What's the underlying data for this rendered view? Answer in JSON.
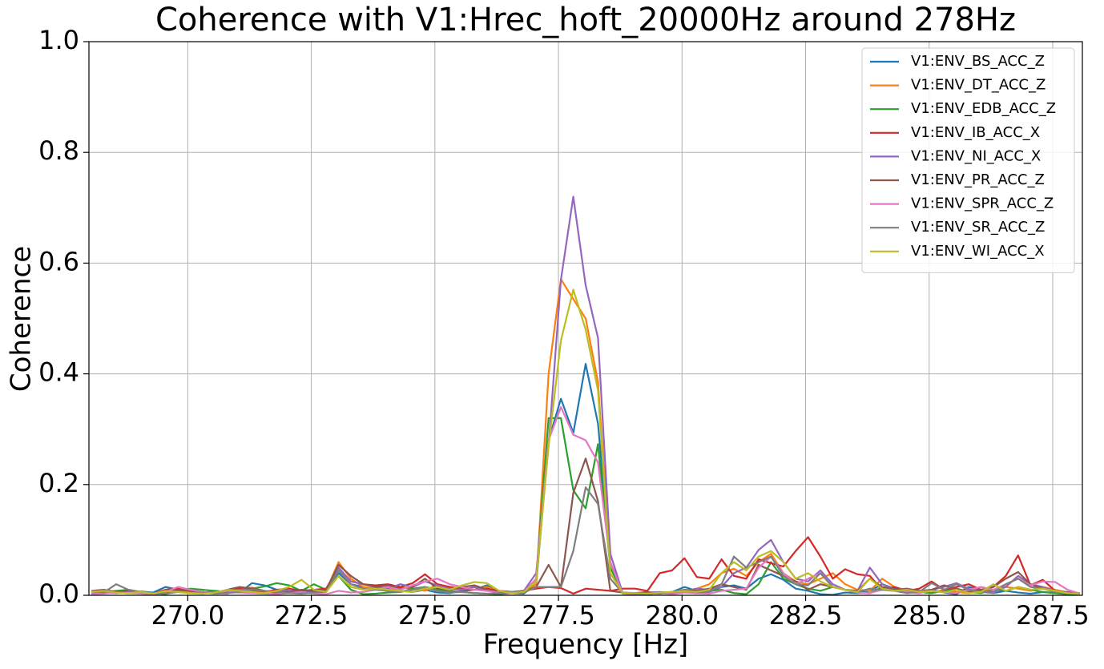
{
  "chart_data": {
    "type": "line",
    "title": "Coherence with V1:Hrec_hoft_20000Hz around 278Hz",
    "xlabel": "Frequency [Hz]",
    "ylabel": "Coherence",
    "xlim": [
      268,
      288.1
    ],
    "ylim": [
      0,
      1
    ],
    "xticks": [
      {
        "value": 270,
        "label": "270.0"
      },
      272.5,
      {
        "value": 275,
        "label": "275.0"
      },
      277.5,
      {
        "value": 280,
        "label": "280.0"
      },
      282.5,
      {
        "value": 285,
        "label": "285.0"
      },
      287.5
    ],
    "yticks": [
      {
        "value": 0,
        "label": "0.0"
      },
      0.2,
      0.4,
      0.6,
      0.8,
      {
        "value": 1,
        "label": "1.0"
      }
    ],
    "grid": true,
    "legend": "upper right",
    "x": [
      268.05,
      268.3,
      268.55,
      268.8,
      269.05,
      269.3,
      269.55,
      269.8,
      270.05,
      270.3,
      270.55,
      270.8,
      271.05,
      271.3,
      271.55,
      271.8,
      272.05,
      272.3,
      272.55,
      272.8,
      273.05,
      273.3,
      273.55,
      273.8,
      274.05,
      274.3,
      274.55,
      274.8,
      275.05,
      275.3,
      275.55,
      275.8,
      276.05,
      276.3,
      276.55,
      276.8,
      277.05,
      277.3,
      277.55,
      277.8,
      278.05,
      278.3,
      278.55,
      278.8,
      279.05,
      279.3,
      279.55,
      279.8,
      280.05,
      280.3,
      280.55,
      280.8,
      281.05,
      281.3,
      281.55,
      281.8,
      282.05,
      282.3,
      282.55,
      282.8,
      283.05,
      283.3,
      283.55,
      283.8,
      284.05,
      284.3,
      284.55,
      284.8,
      285.05,
      285.3,
      285.55,
      285.8,
      286.05,
      286.3,
      286.55,
      286.8,
      287.05,
      287.3,
      287.55,
      287.8,
      288.05
    ],
    "series": [
      {
        "name": "V1:ENV_BS_ACC_Z",
        "color": "#1f77b4",
        "values": [
          0.005,
          0.008,
          0.006,
          0.004,
          0.007,
          0.005,
          0.015,
          0.01,
          0.006,
          0.004,
          0.008,
          0.006,
          0.005,
          0.022,
          0.018,
          0.01,
          0.006,
          0.004,
          0.008,
          0.012,
          0.04,
          0.02,
          0.015,
          0.01,
          0.012,
          0.008,
          0.006,
          0.01,
          0.005,
          0.004,
          0.008,
          0.01,
          0.018,
          0.006,
          0.004,
          0.003,
          0.02,
          0.28,
          0.355,
          0.293,
          0.418,
          0.31,
          0.06,
          0.004,
          0.003,
          0.005,
          0.004,
          0.006,
          0.015,
          0.008,
          0.006,
          0.015,
          0.018,
          0.012,
          0.03,
          0.038,
          0.028,
          0.012,
          0.008,
          0.002,
          0.001,
          0.005,
          0.004,
          0.008,
          0.02,
          0.012,
          0.006,
          0.004,
          0.01,
          0.005,
          0.002,
          0.015,
          0.01,
          0.004,
          0.008,
          0.005,
          0.003,
          0.006,
          0.004,
          0.002,
          0.001
        ]
      },
      {
        "name": "V1:ENV_DT_ACC_Z",
        "color": "#ff7f0e",
        "values": [
          0.004,
          0.006,
          0.008,
          0.005,
          0.003,
          0.002,
          0.004,
          0.01,
          0.006,
          0.005,
          0.004,
          0.003,
          0.012,
          0.014,
          0.008,
          0.006,
          0.01,
          0.005,
          0.004,
          0.008,
          0.06,
          0.03,
          0.015,
          0.012,
          0.01,
          0.015,
          0.012,
          0.008,
          0.02,
          0.015,
          0.012,
          0.01,
          0.015,
          0.008,
          0.006,
          0.005,
          0.02,
          0.4,
          0.571,
          0.535,
          0.5,
          0.385,
          0.05,
          0.004,
          0.003,
          0.004,
          0.005,
          0.006,
          0.008,
          0.012,
          0.02,
          0.04,
          0.048,
          0.035,
          0.06,
          0.075,
          0.04,
          0.025,
          0.02,
          0.03,
          0.04,
          0.02,
          0.01,
          0.008,
          0.03,
          0.015,
          0.008,
          0.006,
          0.004,
          0.01,
          0.006,
          0.004,
          0.008,
          0.01,
          0.015,
          0.012,
          0.008,
          0.015,
          0.01,
          0.005,
          0.003
        ]
      },
      {
        "name": "V1:ENV_EDB_ACC_Z",
        "color": "#2ca02c",
        "values": [
          0.006,
          0.004,
          0.008,
          0.01,
          0.006,
          0.004,
          0.002,
          0.008,
          0.012,
          0.01,
          0.008,
          0.006,
          0.01,
          0.012,
          0.016,
          0.022,
          0.018,
          0.008,
          0.02,
          0.01,
          0.035,
          0.01,
          0.002,
          0.003,
          0.005,
          0.006,
          0.012,
          0.015,
          0.01,
          0.008,
          0.006,
          0.004,
          0.003,
          0.002,
          0.004,
          0.006,
          0.03,
          0.32,
          0.32,
          0.19,
          0.157,
          0.273,
          0.05,
          0.003,
          0.002,
          0.004,
          0.003,
          0.005,
          0.006,
          0.004,
          0.008,
          0.01,
          0.004,
          0.002,
          0.02,
          0.06,
          0.03,
          0.02,
          0.012,
          0.008,
          0.015,
          0.01,
          0.005,
          0.004,
          0.015,
          0.01,
          0.008,
          0.006,
          0.004,
          0.008,
          0.012,
          0.006,
          0.004,
          0.01,
          0.008,
          0.015,
          0.01,
          0.006,
          0.004,
          0.002,
          0.001
        ]
      },
      {
        "name": "V1:ENV_IB_ACC_X",
        "color": "#d62728",
        "values": [
          0.002,
          0.004,
          0.006,
          0.008,
          0.005,
          0.003,
          0.01,
          0.012,
          0.008,
          0.006,
          0.004,
          0.01,
          0.012,
          0.008,
          0.006,
          0.01,
          0.012,
          0.008,
          0.01,
          0.012,
          0.05,
          0.025,
          0.02,
          0.018,
          0.02,
          0.015,
          0.022,
          0.038,
          0.02,
          0.015,
          0.012,
          0.01,
          0.012,
          0.008,
          0.006,
          0.008,
          0.012,
          0.015,
          0.013,
          0.003,
          0.012,
          0.01,
          0.008,
          0.012,
          0.012,
          0.008,
          0.04,
          0.045,
          0.067,
          0.033,
          0.03,
          0.065,
          0.035,
          0.03,
          0.065,
          0.058,
          0.052,
          0.08,
          0.105,
          0.07,
          0.03,
          0.047,
          0.038,
          0.035,
          0.01,
          0.015,
          0.008,
          0.012,
          0.025,
          0.01,
          0.015,
          0.02,
          0.01,
          0.015,
          0.035,
          0.072,
          0.018,
          0.028,
          0.008,
          0.005,
          0.003
        ]
      },
      {
        "name": "V1:ENV_NI_ACC_X",
        "color": "#9467bd",
        "values": [
          0.003,
          0.005,
          0.004,
          0.006,
          0.003,
          0.002,
          0.004,
          0.008,
          0.01,
          0.006,
          0.004,
          0.008,
          0.01,
          0.012,
          0.008,
          0.006,
          0.01,
          0.004,
          0.006,
          0.008,
          0.05,
          0.025,
          0.02,
          0.015,
          0.012,
          0.02,
          0.015,
          0.025,
          0.018,
          0.012,
          0.01,
          0.015,
          0.01,
          0.006,
          0.004,
          0.008,
          0.04,
          0.27,
          0.57,
          0.72,
          0.56,
          0.465,
          0.075,
          0.004,
          0.003,
          0.005,
          0.006,
          0.004,
          0.008,
          0.012,
          0.01,
          0.015,
          0.04,
          0.05,
          0.082,
          0.1,
          0.06,
          0.03,
          0.025,
          0.045,
          0.02,
          0.01,
          0.008,
          0.05,
          0.02,
          0.01,
          0.008,
          0.006,
          0.01,
          0.015,
          0.022,
          0.012,
          0.008,
          0.006,
          0.015,
          0.035,
          0.02,
          0.015,
          0.008,
          0.006,
          0.004
        ]
      },
      {
        "name": "V1:ENV_PR_ACC_Z",
        "color": "#8c564b",
        "values": [
          0.008,
          0.01,
          0.006,
          0.004,
          0.005,
          0.003,
          0.006,
          0.01,
          0.008,
          0.006,
          0.004,
          0.01,
          0.015,
          0.012,
          0.008,
          0.004,
          0.006,
          0.01,
          0.008,
          0.01,
          0.055,
          0.035,
          0.02,
          0.015,
          0.018,
          0.012,
          0.015,
          0.03,
          0.012,
          0.01,
          0.015,
          0.018,
          0.01,
          0.006,
          0.004,
          0.008,
          0.015,
          0.055,
          0.015,
          0.185,
          0.247,
          0.17,
          0.008,
          0.005,
          0.004,
          0.006,
          0.003,
          0.005,
          0.01,
          0.008,
          0.012,
          0.02,
          0.015,
          0.01,
          0.055,
          0.045,
          0.035,
          0.025,
          0.01,
          0.02,
          0.015,
          0.01,
          0.008,
          0.03,
          0.015,
          0.01,
          0.012,
          0.008,
          0.01,
          0.018,
          0.012,
          0.006,
          0.01,
          0.015,
          0.03,
          0.042,
          0.02,
          0.012,
          0.008,
          0.005,
          0.003
        ]
      },
      {
        "name": "V1:ENV_SPR_ACC_Z",
        "color": "#e377c2",
        "values": [
          0.002,
          0.003,
          0.005,
          0.004,
          0.003,
          0.002,
          0.006,
          0.015,
          0.01,
          0.006,
          0.004,
          0.008,
          0.005,
          0.004,
          0.003,
          0.002,
          0.004,
          0.006,
          0.003,
          0.002,
          0.008,
          0.005,
          0.006,
          0.01,
          0.015,
          0.01,
          0.018,
          0.025,
          0.03,
          0.02,
          0.015,
          0.01,
          0.008,
          0.005,
          0.004,
          0.006,
          0.03,
          0.28,
          0.34,
          0.29,
          0.28,
          0.24,
          0.06,
          0.003,
          0.002,
          0.003,
          0.004,
          0.002,
          0.005,
          0.004,
          0.003,
          0.008,
          0.01,
          0.012,
          0.05,
          0.07,
          0.04,
          0.02,
          0.03,
          0.04,
          0.015,
          0.01,
          0.005,
          0.004,
          0.01,
          0.008,
          0.006,
          0.004,
          0.008,
          0.006,
          0.004,
          0.01,
          0.015,
          0.01,
          0.02,
          0.03,
          0.018,
          0.025,
          0.024,
          0.01,
          0.003
        ]
      },
      {
        "name": "V1:ENV_SR_ACC_Z",
        "color": "#7f7f7f",
        "values": [
          0.008,
          0.005,
          0.02,
          0.01,
          0.006,
          0.004,
          0.003,
          0.006,
          0.004,
          0.005,
          0.003,
          0.004,
          0.006,
          0.01,
          0.008,
          0.006,
          0.004,
          0.003,
          0.005,
          0.006,
          0.045,
          0.02,
          0.012,
          0.01,
          0.008,
          0.006,
          0.01,
          0.015,
          0.008,
          0.005,
          0.006,
          0.004,
          0.003,
          0.004,
          0.006,
          0.005,
          0.015,
          0.015,
          0.015,
          0.08,
          0.195,
          0.165,
          0.03,
          0.004,
          0.003,
          0.002,
          0.004,
          0.006,
          0.008,
          0.005,
          0.006,
          0.02,
          0.07,
          0.05,
          0.06,
          0.07,
          0.035,
          0.02,
          0.018,
          0.04,
          0.015,
          0.01,
          0.006,
          0.012,
          0.01,
          0.008,
          0.004,
          0.006,
          0.022,
          0.01,
          0.02,
          0.01,
          0.006,
          0.004,
          0.02,
          0.03,
          0.015,
          0.012,
          0.006,
          0.004,
          0.002
        ]
      },
      {
        "name": "V1:ENV_WI_ACC_X",
        "color": "#bcbd22",
        "values": [
          0.006,
          0.008,
          0.005,
          0.004,
          0.006,
          0.003,
          0.008,
          0.006,
          0.004,
          0.003,
          0.005,
          0.01,
          0.008,
          0.006,
          0.004,
          0.008,
          0.015,
          0.028,
          0.01,
          0.006,
          0.035,
          0.015,
          0.01,
          0.012,
          0.01,
          0.008,
          0.006,
          0.012,
          0.015,
          0.01,
          0.018,
          0.024,
          0.022,
          0.008,
          0.004,
          0.006,
          0.025,
          0.27,
          0.46,
          0.552,
          0.48,
          0.37,
          0.04,
          0.004,
          0.004,
          0.003,
          0.005,
          0.006,
          0.008,
          0.006,
          0.01,
          0.04,
          0.06,
          0.045,
          0.07,
          0.08,
          0.06,
          0.03,
          0.04,
          0.025,
          0.015,
          0.01,
          0.006,
          0.03,
          0.012,
          0.008,
          0.01,
          0.006,
          0.008,
          0.005,
          0.01,
          0.004,
          0.006,
          0.02,
          0.008,
          0.015,
          0.01,
          0.012,
          0.008,
          0.004,
          0.002
        ]
      }
    ]
  }
}
